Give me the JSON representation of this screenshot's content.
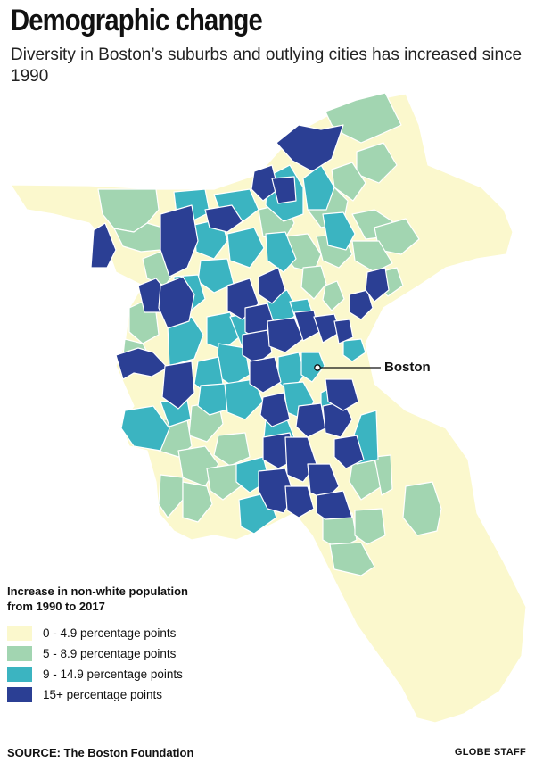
{
  "header": {
    "title": "Demographic change",
    "subtitle": "Diversity in Boston’s suburbs and outlying cities has increased since 1990"
  },
  "map": {
    "marker_label": "Boston",
    "land_color": "#fbf8cd",
    "border_color": "#ffffff"
  },
  "legend": {
    "title_line1": "Increase in non-white population",
    "title_line2": "from 1990 to 2017",
    "items": [
      {
        "label": "0 - 4.9 percentage points",
        "color": "#fbf8cd"
      },
      {
        "label": "5 - 8.9 percentage points",
        "color": "#a2d5b1"
      },
      {
        "label": "9 - 14.9 percentage points",
        "color": "#3bb4c1"
      },
      {
        "label": "15+ percentage points",
        "color": "#2b3f94"
      }
    ]
  },
  "footer": {
    "source": "SOURCE: The Boston Foundation",
    "credit": "GLOBE STAFF"
  }
}
